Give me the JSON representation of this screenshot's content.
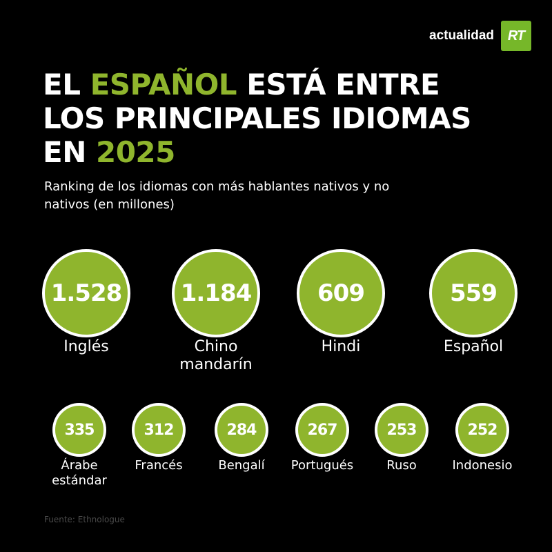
{
  "brand": {
    "name": "actualidad",
    "badge": "RT",
    "accent_color": "#8fb52d"
  },
  "headline": {
    "line1_pre": "EL ",
    "line1_accent": "ESPAÑOL",
    "line1_post": " ESTÁ ENTRE",
    "line2": "LOS PRINCIPALES IDIOMAS",
    "line3_pre": "EN ",
    "line3_accent": "2025"
  },
  "subtitle": "Ranking de los idiomas con más hablantes nativos y no nativos (en millones)",
  "source": "Fuente: Ethnologue",
  "chart_data": {
    "type": "bubble",
    "unit": "millones",
    "categories": [
      "Inglés",
      "Chino mandarín",
      "Hindi",
      "Español",
      "Árabe estándar",
      "Francés",
      "Bengalí",
      "Portugués",
      "Ruso",
      "Indonesio"
    ],
    "values": [
      1528,
      1184,
      609,
      559,
      335,
      312,
      284,
      267,
      253,
      252
    ],
    "items": [
      {
        "label": "Inglés",
        "value_text": "1.528",
        "value": 1528
      },
      {
        "label": "Chino\nmandarín",
        "value_text": "1.184",
        "value": 1184
      },
      {
        "label": "Hindi",
        "value_text": "609",
        "value": 609
      },
      {
        "label": "Español",
        "value_text": "559",
        "value": 559
      },
      {
        "label": "Árabe\nestándar",
        "value_text": "335",
        "value": 335
      },
      {
        "label": "Francés",
        "value_text": "312",
        "value": 312
      },
      {
        "label": "Bengalí",
        "value_text": "284",
        "value": 284
      },
      {
        "label": "Portugués",
        "value_text": "267",
        "value": 267
      },
      {
        "label": "Ruso",
        "value_text": "253",
        "value": 253
      },
      {
        "label": "Indonesio",
        "value_text": "252",
        "value": 252
      }
    ]
  }
}
